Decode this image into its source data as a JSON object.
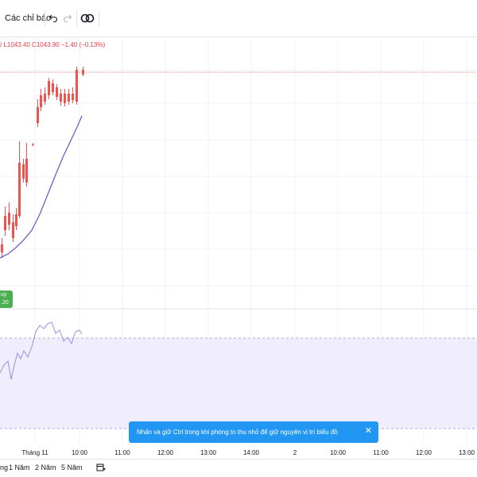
{
  "toolbar": {
    "indicators_label": "Các chỉ báo",
    "undo_icon": "undo-icon",
    "redo_icon": "redo-icon",
    "replay_icon": "replay-icon"
  },
  "legend": {
    "text": "/ L1043.40  C1043.90  −1.40  (−0.13%)"
  },
  "buy_tag": {
    "line1": "uy",
    "line2": ".20"
  },
  "tooltip": {
    "text": "Nhấn và giữ Ctrl trong khi phóng to thu nhỏ để giữ nguyên vị trí biểu đồ",
    "close_icon": "close-icon"
  },
  "time_axis": {
    "labels": [
      "Tháng 11",
      "10:00",
      "11:00",
      "12:00",
      "13:00",
      "14:00",
      "2",
      "10:00",
      "11:00",
      "12:00",
      "13:00"
    ]
  },
  "range_bar": {
    "items": [
      "ng",
      "1 Năm",
      "2 Năm",
      "5 Năm"
    ],
    "calendar_icon": "calendar-range-icon"
  },
  "colors": {
    "up": "#26a69a",
    "down": "#ef5350",
    "ma_line": "#7e57c2",
    "rsi_line": "#9c8fe0",
    "rsi_band": "#f0edfc",
    "tooltip_bg": "#2196f3",
    "buy_tag": "#4caf50"
  }
}
